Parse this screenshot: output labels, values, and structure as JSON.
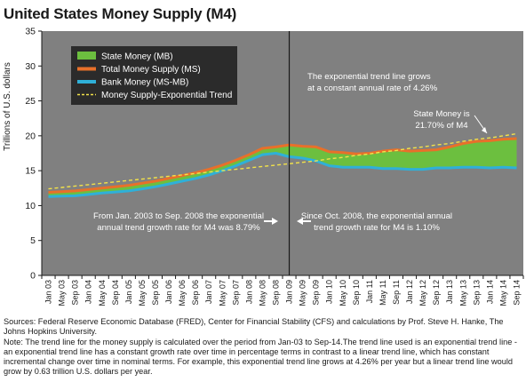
{
  "chart_data": {
    "type": "area",
    "title": "United States Money Supply (M4)",
    "ylabel": "Trillions of U.S. dollars",
    "xlabel": "",
    "ylim": [
      0,
      35
    ],
    "yticks": [
      0,
      5,
      10,
      15,
      20,
      25,
      30,
      35
    ],
    "grid": false,
    "legend_position": "top-left",
    "x_tick_labels": [
      "Jan 03",
      "May 03",
      "Sep 03",
      "Jan 04",
      "May 04",
      "Sep 04",
      "Jan 05",
      "May 05",
      "Sep 05",
      "Jan 06",
      "May 06",
      "Sep 06",
      "Jan 07",
      "May 07",
      "Sep 07",
      "Jan 08",
      "May 08",
      "Sep 08",
      "Jan 09",
      "May 09",
      "Sep 09",
      "Jan 10",
      "May 10",
      "Sep 10",
      "Jan 11",
      "May 11",
      "Sep 11",
      "Jan 12",
      "May 12",
      "Sep 12",
      "Jan 13",
      "May 13",
      "Sep 13",
      "Jan 14",
      "May 14",
      "Sep 14"
    ],
    "series": [
      {
        "name": "State Money (MB)",
        "color": "#6cbf3f",
        "style": "area-between",
        "values": [
          0.6,
          0.65,
          0.68,
          0.7,
          0.73,
          0.75,
          0.76,
          0.77,
          0.78,
          0.79,
          0.8,
          0.81,
          0.81,
          0.82,
          0.83,
          0.84,
          0.84,
          0.9,
          1.7,
          1.75,
          2.0,
          2.05,
          2.05,
          1.95,
          2.0,
          2.5,
          2.65,
          2.6,
          2.65,
          2.6,
          3.0,
          3.45,
          3.75,
          3.95,
          3.95,
          4.25
        ]
      },
      {
        "name": "Total Money Supply (MS)",
        "color": "#e8702a",
        "style": "line",
        "values": [
          11.9,
          12.0,
          12.1,
          12.3,
          12.5,
          12.7,
          12.9,
          13.2,
          13.5,
          13.9,
          14.3,
          14.7,
          15.2,
          15.8,
          16.5,
          17.3,
          18.2,
          18.4,
          18.7,
          18.5,
          18.4,
          17.7,
          17.6,
          17.4,
          17.5,
          17.8,
          18.0,
          17.8,
          17.9,
          18.0,
          18.4,
          18.9,
          19.2,
          19.3,
          19.5,
          19.6
        ]
      },
      {
        "name": "Bank Money (MS-MB)",
        "color": "#2fb0d8",
        "style": "line",
        "values": [
          11.3,
          11.35,
          11.4,
          11.6,
          11.8,
          11.95,
          12.1,
          12.4,
          12.7,
          13.1,
          13.5,
          13.9,
          14.4,
          15.0,
          15.7,
          16.5,
          17.3,
          17.5,
          17.0,
          16.8,
          16.4,
          15.7,
          15.5,
          15.5,
          15.5,
          15.3,
          15.3,
          15.2,
          15.2,
          15.4,
          15.4,
          15.5,
          15.5,
          15.4,
          15.5,
          15.4
        ]
      },
      {
        "name": "Money Supply-Exponential Trend",
        "color": "#f2e24a",
        "style": "dashed",
        "values": [
          12.4,
          12.6,
          12.8,
          13.0,
          13.2,
          13.4,
          13.6,
          13.8,
          14.0,
          14.2,
          14.4,
          14.6,
          14.8,
          15.0,
          15.2,
          15.4,
          15.6,
          15.8,
          16.0,
          16.2,
          16.4,
          16.7,
          16.9,
          17.2,
          17.4,
          17.7,
          17.9,
          18.2,
          18.4,
          18.7,
          18.9,
          19.2,
          19.5,
          19.7,
          20.0,
          20.3
        ]
      }
    ],
    "annotations": {
      "trend_note": [
        "The exponential trend line grows",
        "at a constant annual rate of 4.26%"
      ],
      "state_money_note": [
        "State Money is",
        "21.70% of M4"
      ],
      "pre_note": [
        "From Jan. 2003 to Sep. 2008 the exponential",
        "annual trend growth rate for M4 was 8.79%"
      ],
      "post_note": [
        "Since Oct. 2008, the exponential annual",
        "trend growth rate for M4 is 1.10%"
      ]
    },
    "divider_at": "Jan 09"
  },
  "sources_text": "Sources: Federal Reserve Economic Database (FRED), Center for Financial Stability (CFS) and calculations by Prof. Steve H. Hanke, The Johns Hopkins University.",
  "note_text": "Note: The trend line for the money supply is calculated over the period from Jan-03 to Sep-14.The trend line used is an exponential trend line - an exponential trend line has a constant growth rate over time in percentage terms in contrast to a linear trend line, which has constant incremental change over time in nominal terms. For example, this exponential trend line grows at 4.26% per year but a linear trend line would grow by 0.63 trillion U.S. dollars per year.",
  "colors": {
    "plot_bg": "#808080",
    "legend_bg": "#2b2b2b",
    "white": "#ffffff"
  }
}
